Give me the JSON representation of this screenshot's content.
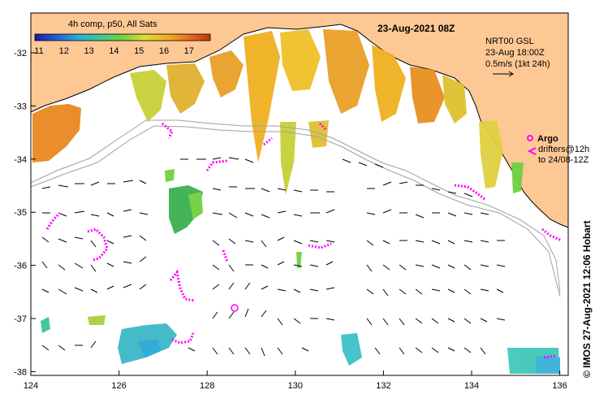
{
  "map": {
    "title": "23-Aug-2021 08Z",
    "colorbar": {
      "label": "4h comp, p50, All Sats",
      "ticks": [
        "11",
        "12",
        "13",
        "14",
        "15",
        "16",
        "17"
      ],
      "colors": [
        "#1a1aa8",
        "#1f60d8",
        "#28b0d8",
        "#3cc890",
        "#70d040",
        "#d8e030",
        "#f0b020",
        "#e87020",
        "#c83010"
      ]
    },
    "legend": {
      "line1": "NRT00 GSL",
      "line2": "23-Aug 18:00Z",
      "line3": "0.5m/s (1kt 24h)"
    },
    "argo": {
      "label": "Argo",
      "drifters_line1": "drifters@12h",
      "drifters_line2": "to 24/08-12Z",
      "color": "#ff00ff"
    },
    "credit": "© IMOS 27-Aug-2021 12:06 Hobart",
    "y_axis_labels": [
      "-32",
      "-33",
      "-34",
      "-35",
      "-36",
      "-37",
      "-38"
    ],
    "x_axis_labels": [
      "124",
      "126",
      "128",
      "130",
      "132",
      "134",
      "136"
    ],
    "land_color": "#fec895",
    "sea_color": "#ffffff"
  }
}
